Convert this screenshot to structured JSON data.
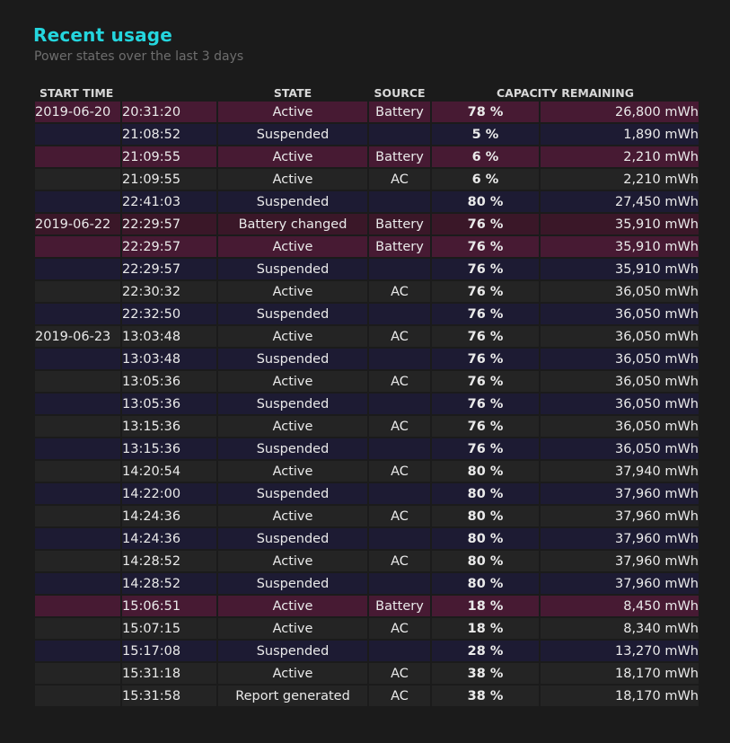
{
  "title": "Recent usage",
  "subtitle": "Power states over the last 3 days",
  "columns": {
    "start_time": "START TIME",
    "state": "STATE",
    "source": "SOURCE",
    "capacity": "CAPACITY REMAINING"
  },
  "rows": [
    {
      "date": "2019-06-20",
      "time": "20:31:20",
      "state": "Active",
      "source": "Battery",
      "percent": "78 %",
      "mwh": "26,800 mWh",
      "kind": "battery"
    },
    {
      "date": "",
      "time": "21:08:52",
      "state": "Suspended",
      "source": "",
      "percent": "5 %",
      "mwh": "1,890 mWh",
      "kind": "susp"
    },
    {
      "date": "",
      "time": "21:09:55",
      "state": "Active",
      "source": "Battery",
      "percent": "6 %",
      "mwh": "2,210 mWh",
      "kind": "battery"
    },
    {
      "date": "",
      "time": "21:09:55",
      "state": "Active",
      "source": "AC",
      "percent": "6 %",
      "mwh": "2,210 mWh",
      "kind": "ac"
    },
    {
      "date": "",
      "time": "22:41:03",
      "state": "Suspended",
      "source": "",
      "percent": "80 %",
      "mwh": "27,450 mWh",
      "kind": "susp"
    },
    {
      "date": "2019-06-22",
      "time": "22:29:57",
      "state": "Battery changed",
      "source": "Battery",
      "percent": "76 %",
      "mwh": "35,910 mWh",
      "kind": "charge"
    },
    {
      "date": "",
      "time": "22:29:57",
      "state": "Active",
      "source": "Battery",
      "percent": "76 %",
      "mwh": "35,910 mWh",
      "kind": "battery"
    },
    {
      "date": "",
      "time": "22:29:57",
      "state": "Suspended",
      "source": "",
      "percent": "76 %",
      "mwh": "35,910 mWh",
      "kind": "susp"
    },
    {
      "date": "",
      "time": "22:30:32",
      "state": "Active",
      "source": "AC",
      "percent": "76 %",
      "mwh": "36,050 mWh",
      "kind": "ac"
    },
    {
      "date": "",
      "time": "22:32:50",
      "state": "Suspended",
      "source": "",
      "percent": "76 %",
      "mwh": "36,050 mWh",
      "kind": "susp"
    },
    {
      "date": "2019-06-23",
      "time": "13:03:48",
      "state": "Active",
      "source": "AC",
      "percent": "76 %",
      "mwh": "36,050 mWh",
      "kind": "ac"
    },
    {
      "date": "",
      "time": "13:03:48",
      "state": "Suspended",
      "source": "",
      "percent": "76 %",
      "mwh": "36,050 mWh",
      "kind": "susp"
    },
    {
      "date": "",
      "time": "13:05:36",
      "state": "Active",
      "source": "AC",
      "percent": "76 %",
      "mwh": "36,050 mWh",
      "kind": "ac"
    },
    {
      "date": "",
      "time": "13:05:36",
      "state": "Suspended",
      "source": "",
      "percent": "76 %",
      "mwh": "36,050 mWh",
      "kind": "susp"
    },
    {
      "date": "",
      "time": "13:15:36",
      "state": "Active",
      "source": "AC",
      "percent": "76 %",
      "mwh": "36,050 mWh",
      "kind": "ac"
    },
    {
      "date": "",
      "time": "13:15:36",
      "state": "Suspended",
      "source": "",
      "percent": "76 %",
      "mwh": "36,050 mWh",
      "kind": "susp"
    },
    {
      "date": "",
      "time": "14:20:54",
      "state": "Active",
      "source": "AC",
      "percent": "80 %",
      "mwh": "37,940 mWh",
      "kind": "ac"
    },
    {
      "date": "",
      "time": "14:22:00",
      "state": "Suspended",
      "source": "",
      "percent": "80 %",
      "mwh": "37,960 mWh",
      "kind": "susp"
    },
    {
      "date": "",
      "time": "14:24:36",
      "state": "Active",
      "source": "AC",
      "percent": "80 %",
      "mwh": "37,960 mWh",
      "kind": "ac"
    },
    {
      "date": "",
      "time": "14:24:36",
      "state": "Suspended",
      "source": "",
      "percent": "80 %",
      "mwh": "37,960 mWh",
      "kind": "susp"
    },
    {
      "date": "",
      "time": "14:28:52",
      "state": "Active",
      "source": "AC",
      "percent": "80 %",
      "mwh": "37,960 mWh",
      "kind": "ac"
    },
    {
      "date": "",
      "time": "14:28:52",
      "state": "Suspended",
      "source": "",
      "percent": "80 %",
      "mwh": "37,960 mWh",
      "kind": "susp"
    },
    {
      "date": "",
      "time": "15:06:51",
      "state": "Active",
      "source": "Battery",
      "percent": "18 %",
      "mwh": "8,450 mWh",
      "kind": "battery"
    },
    {
      "date": "",
      "time": "15:07:15",
      "state": "Active",
      "source": "AC",
      "percent": "18 %",
      "mwh": "8,340 mWh",
      "kind": "ac"
    },
    {
      "date": "",
      "time": "15:17:08",
      "state": "Suspended",
      "source": "",
      "percent": "28 %",
      "mwh": "13,270 mWh",
      "kind": "susp"
    },
    {
      "date": "",
      "time": "15:31:18",
      "state": "Active",
      "source": "AC",
      "percent": "38 %",
      "mwh": "18,170 mWh",
      "kind": "ac"
    },
    {
      "date": "",
      "time": "15:31:58",
      "state": "Report generated",
      "source": "AC",
      "percent": "38 %",
      "mwh": "18,170 mWh",
      "kind": "ac"
    }
  ],
  "colors": {
    "title": "#24d6de",
    "battery_row": "#471a33",
    "battery_changed_row": "#3a1728",
    "ac_row": "#242424",
    "suspended_row": "#1d1b33",
    "background": "#1b1b1b"
  }
}
